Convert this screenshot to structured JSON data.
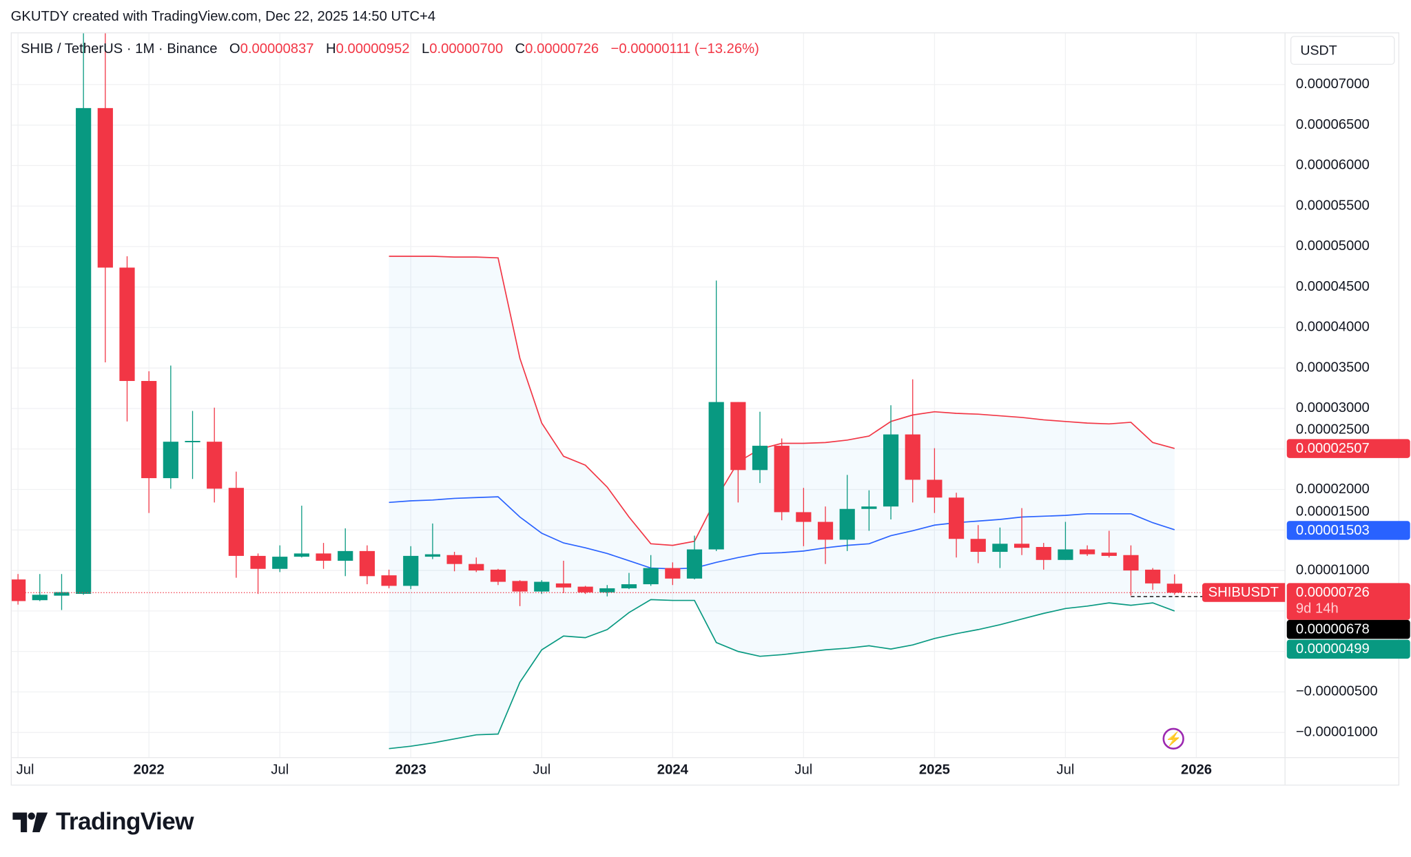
{
  "header": {
    "attribution": "GKUTDY created with TradingView.com, Dec 22, 2025 14:50 UTC+4"
  },
  "legend": {
    "symbol": "SHIB / TetherUS · 1M · Binance",
    "o_label": "O",
    "o": "0.00000837",
    "h_label": "H",
    "h": "0.00000952",
    "l_label": "L",
    "l": "0.00000700",
    "c_label": "C",
    "c": "0.00000726",
    "change": "−0.00000111 (−13.26%)"
  },
  "currency": "USDT",
  "price_labels": {
    "upper_band": "0.00002507",
    "basis": "0.00001503",
    "last_price": "0.00000726",
    "countdown": "9d 14h",
    "dashed_level": "0.00000678",
    "lower_band": "0.00000499",
    "symbol_tag": "SHIBUSDT"
  },
  "colors": {
    "up": "#089981",
    "down": "#F23645",
    "basis": "#2962FF",
    "upper": "#F23645",
    "lower": "#089981",
    "band_fill": "#2196F3",
    "dashed": "#000000",
    "lightning": "#9C27B0"
  },
  "icons": {
    "logo": "tradingview-logo",
    "lightning": "lightning-icon"
  },
  "brand": "TradingView",
  "chart_data": {
    "type": "candlestick",
    "title": "SHIB / TetherUS · 1M · Binance",
    "yaxis": {
      "ticks": [
        "0.00007000",
        "0.00006500",
        "0.00006000",
        "0.00005500",
        "0.00005000",
        "0.00004500",
        "0.00004000",
        "0.00003500",
        "0.00003000",
        "0.00002500",
        "0.00002000",
        "0.00001500",
        "0.00001000",
        "−0.00000500",
        "−0.00001000"
      ],
      "position": "right",
      "grid": true
    },
    "xaxis": {
      "ticks": [
        {
          "label": "Jul",
          "month": "2021-07",
          "year": false
        },
        {
          "label": "2022",
          "month": "2022-01",
          "year": true
        },
        {
          "label": "Jul",
          "month": "2022-07",
          "year": false
        },
        {
          "label": "2023",
          "month": "2023-01",
          "year": true
        },
        {
          "label": "Jul",
          "month": "2023-07",
          "year": false
        },
        {
          "label": "2024",
          "month": "2024-01",
          "year": true
        },
        {
          "label": "Jul",
          "month": "2024-07",
          "year": false
        },
        {
          "label": "2025",
          "month": "2025-01",
          "year": true
        },
        {
          "label": "Jul",
          "month": "2025-07",
          "year": false
        },
        {
          "label": "2026",
          "month": "2026-01",
          "year": true
        }
      ],
      "grid": true
    },
    "first_month": "2021-07",
    "ohlc_fields": [
      "open",
      "high",
      "low",
      "close"
    ],
    "ohlc": [
      [
        8.89e-06,
        9.56e-06,
        5.78e-06,
        6.22e-06
      ],
      [
        6.33e-06,
        9.56e-06,
        6.22e-06,
        7e-06
      ],
      [
        6.89e-06,
        9.56e-06,
        5.11e-06,
        7.33e-06
      ],
      [
        7.11e-06,
        8.8e-05,
        7e-06,
        6.71e-05
      ],
      [
        6.71e-05,
        7.8e-05,
        3.57e-05,
        4.74e-05
      ],
      [
        4.74e-05,
        4.88e-05,
        2.84e-05,
        3.34e-05
      ],
      [
        3.34e-05,
        3.46e-05,
        1.71e-05,
        2.14e-05
      ],
      [
        2.14e-05,
        3.53e-05,
        2.01e-05,
        2.59e-05
      ],
      [
        2.59e-05,
        2.97e-05,
        2.13e-05,
        2.6e-05
      ],
      [
        2.59e-05,
        3.01e-05,
        1.84e-05,
        2.01e-05
      ],
      [
        2.02e-05,
        2.22e-05,
        9.1e-06,
        1.18e-05
      ],
      [
        1.18e-05,
        1.21e-05,
        7.1e-06,
        1.02e-05
      ],
      [
        1.02e-05,
        1.31e-05,
        9.8e-06,
        1.17e-05
      ],
      [
        1.17e-05,
        1.8e-05,
        1.16e-05,
        1.21e-05
      ],
      [
        1.21e-05,
        1.34e-05,
        1.02e-05,
        1.12e-05
      ],
      [
        1.12e-05,
        1.52e-05,
        9.3e-06,
        1.24e-05
      ],
      [
        1.24e-05,
        1.31e-05,
        8.3e-06,
        9.3e-06
      ],
      [
        9.4e-06,
        1.01e-05,
        7.8e-06,
        8.1e-06
      ],
      [
        8.1e-06,
        1.3e-05,
        7.7e-06,
        1.18e-05
      ],
      [
        1.17e-05,
        1.58e-05,
        1.14e-05,
        1.2e-05
      ],
      [
        1.19e-05,
        1.23e-05,
        9.9e-06,
        1.08e-05
      ],
      [
        1.08e-05,
        1.16e-05,
        9.8e-06,
        1e-05
      ],
      [
        1.01e-05,
        1.02e-05,
        8.2e-06,
        8.6e-06
      ],
      [
        8.7e-06,
        8.8e-06,
        5.6e-06,
        7.4e-06
      ],
      [
        7.4e-06,
        8.8e-06,
        7.1e-06,
        8.6e-06
      ],
      [
        8.4e-06,
        1.12e-05,
        7.2e-06,
        7.9e-06
      ],
      [
        8e-06,
        8.1e-06,
        7.1e-06,
        7.3e-06
      ],
      [
        7.3e-06,
        8.2e-06,
        6.8e-06,
        7.8e-06
      ],
      [
        7.8e-06,
        9.7e-06,
        7.7e-06,
        8.3e-06
      ],
      [
        8.3e-06,
        1.19e-05,
        8.1e-06,
        1.03e-05
      ],
      [
        1.03e-05,
        1.1e-05,
        8.2e-06,
        9e-06
      ],
      [
        9e-06,
        1.43e-05,
        8.9e-06,
        1.26e-05
      ],
      [
        1.26e-05,
        4.58e-05,
        1.24e-05,
        3.08e-05
      ],
      [
        3.08e-05,
        3.08e-05,
        1.84e-05,
        2.24e-05
      ],
      [
        2.24e-05,
        2.96e-05,
        2.08e-05,
        2.54e-05
      ],
      [
        2.54e-05,
        2.63e-05,
        1.62e-05,
        1.72e-05
      ],
      [
        1.72e-05,
        2.02e-05,
        1.3e-05,
        1.6e-05
      ],
      [
        1.6e-05,
        1.79e-05,
        1.08e-05,
        1.38e-05
      ],
      [
        1.38e-05,
        2.18e-05,
        1.24e-05,
        1.76e-05
      ],
      [
        1.76e-05,
        1.99e-05,
        1.49e-05,
        1.79e-05
      ],
      [
        1.79e-05,
        3.04e-05,
        1.63e-05,
        2.68e-05
      ],
      [
        2.68e-05,
        3.36e-05,
        1.84e-05,
        2.12e-05
      ],
      [
        2.12e-05,
        2.51e-05,
        1.71e-05,
        1.9e-05
      ],
      [
        1.9e-05,
        1.96e-05,
        1.16e-05,
        1.39e-05
      ],
      [
        1.39e-05,
        1.56e-05,
        1.09e-05,
        1.23e-05
      ],
      [
        1.23e-05,
        1.53e-05,
        1.03e-05,
        1.33e-05
      ],
      [
        1.33e-05,
        1.77e-05,
        1.19e-05,
        1.28e-05
      ],
      [
        1.29e-05,
        1.34e-05,
        1.01e-05,
        1.13e-05
      ],
      [
        1.13e-05,
        1.6e-05,
        1.13e-05,
        1.26e-05
      ],
      [
        1.26e-05,
        1.31e-05,
        1.18e-05,
        1.2e-05
      ],
      [
        1.22e-05,
        1.49e-05,
        1.16e-05,
        1.18e-05
      ],
      [
        1.19e-05,
        1.31e-05,
        6.9e-06,
        1e-05
      ],
      [
        1.01e-05,
        1.03e-05,
        7.6e-06,
        8.4e-06
      ],
      [
        8.37e-06,
        9.52e-06,
        7e-06,
        7.26e-06
      ]
    ],
    "bollinger": {
      "first_month": "2022-12",
      "upper": [
        4.88e-05,
        4.88e-05,
        4.88e-05,
        4.87e-05,
        4.87e-05,
        4.86e-05,
        3.62e-05,
        2.82e-05,
        2.41e-05,
        2.3e-05,
        2.03e-05,
        1.66e-05,
        1.33e-05,
        1.31e-05,
        1.36e-05,
        1.89e-05,
        2.34e-05,
        2.5e-05,
        2.57e-05,
        2.57e-05,
        2.58e-05,
        2.61e-05,
        2.66e-05,
        2.84e-05,
        2.92e-05,
        2.96e-05,
        2.94e-05,
        2.93e-05,
        2.91e-05,
        2.89e-05,
        2.86e-05,
        2.84e-05,
        2.82e-05,
        2.81e-05,
        2.83e-05,
        2.58e-05,
        2.507e-05
      ],
      "basis": [
        1.84e-05,
        1.86e-05,
        1.87e-05,
        1.89e-05,
        1.9e-05,
        1.91e-05,
        1.66e-05,
        1.46e-05,
        1.34e-05,
        1.28e-05,
        1.21e-05,
        1.12e-05,
        1.03e-05,
        1.02e-05,
        1.03e-05,
        1.1e-05,
        1.16e-05,
        1.21e-05,
        1.22e-05,
        1.24e-05,
        1.28e-05,
        1.31e-05,
        1.33e-05,
        1.43e-05,
        1.49e-05,
        1.56e-05,
        1.59e-05,
        1.61e-05,
        1.63e-05,
        1.66e-05,
        1.67e-05,
        1.68e-05,
        1.7e-05,
        1.7e-05,
        1.7e-05,
        1.59e-05,
        1.503e-05
      ],
      "lower": [
        -1.2e-05,
        -1.17e-05,
        -1.13e-05,
        -1.08e-05,
        -1.03e-05,
        -1.02e-05,
        -3.8e-06,
        2e-07,
        1.9e-06,
        1.7e-06,
        2.7e-06,
        4.8e-06,
        6.4e-06,
        6.3e-06,
        6.3e-06,
        1.1e-06,
        0.0,
        -6e-07,
        -4e-07,
        -1e-07,
        2e-07,
        4e-07,
        7e-07,
        3e-07,
        8e-07,
        1.6e-06,
        2.2e-06,
        2.7e-06,
        3.3e-06,
        4e-06,
        4.7e-06,
        5.3e-06,
        5.6e-06,
        6e-06,
        5.7e-06,
        6e-06,
        4.99e-06
      ]
    },
    "last_price": 7.26e-06,
    "dashed_level": 6.78e-06
  }
}
